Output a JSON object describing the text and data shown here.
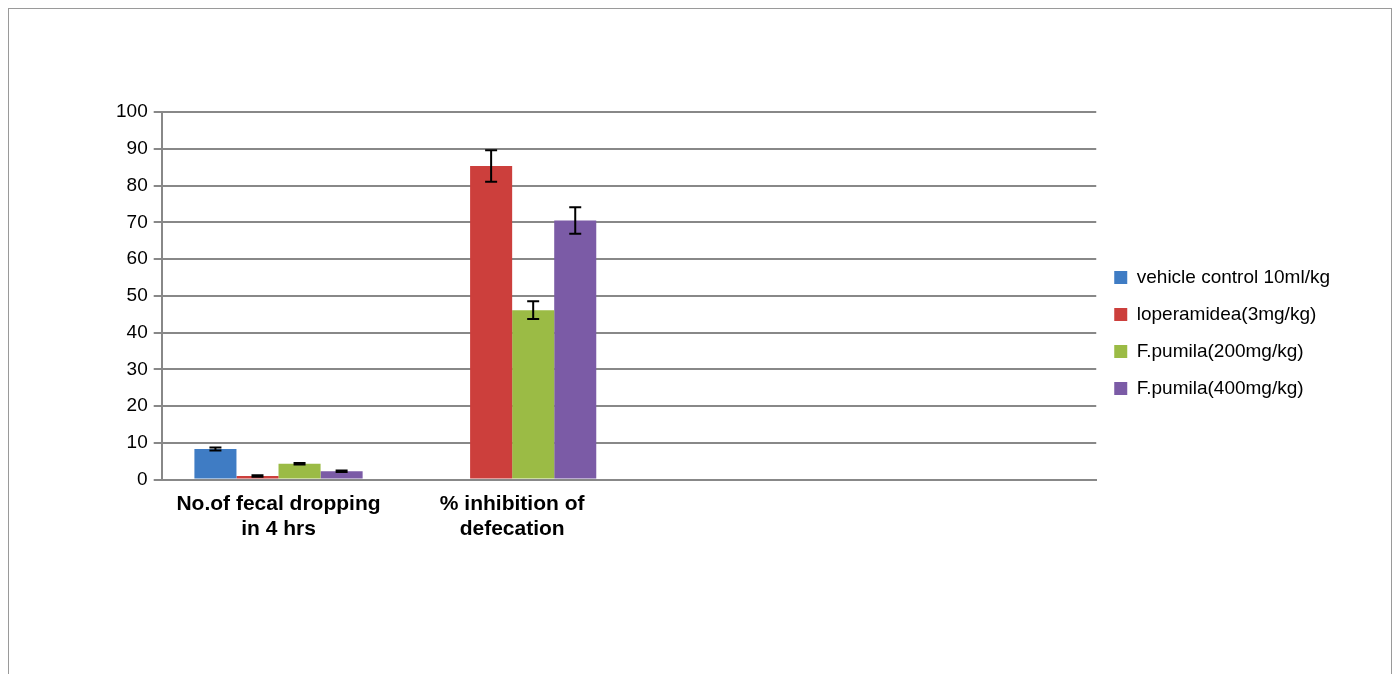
{
  "chart_data": {
    "type": "bar",
    "categories": [
      "No.of fecal dropping in 4 hrs",
      "% inhibition of defecation",
      null,
      null
    ],
    "series": [
      {
        "name": "vehicle control 10ml/kg",
        "color": "#3f7cc4",
        "values": [
          8.3,
          null,
          null,
          null
        ],
        "errors": [
          0.4,
          null,
          null,
          null
        ]
      },
      {
        "name": "loperamidea(3mg/kg)",
        "color": "#cc3f3c",
        "values": [
          1.0,
          85.3,
          null,
          null
        ],
        "errors": [
          0.2,
          4.3,
          null,
          null
        ]
      },
      {
        "name": "F.pumila(200mg/kg)",
        "color": "#9bbb45",
        "values": [
          4.3,
          46.1,
          null,
          null
        ],
        "errors": [
          0.2,
          2.4,
          null,
          null
        ]
      },
      {
        "name": "F.pumila(400mg/kg)",
        "color": "#7b5ba6",
        "values": [
          2.3,
          70.5,
          null,
          null
        ],
        "errors": [
          0.2,
          3.6,
          null,
          null
        ]
      }
    ],
    "ylim": [
      0,
      100
    ],
    "yticks": [
      0,
      10,
      20,
      30,
      40,
      50,
      60,
      70,
      80,
      90,
      100
    ],
    "grid": "y",
    "legend": "right"
  }
}
